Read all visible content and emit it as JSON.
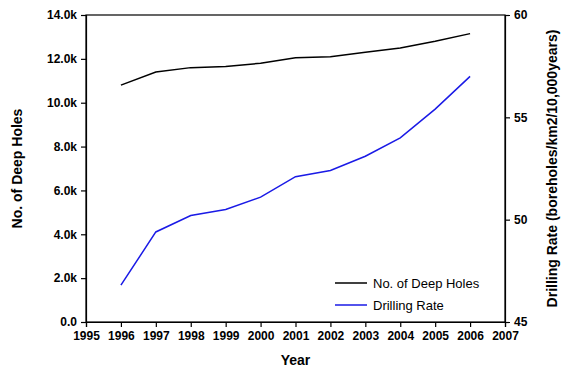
{
  "chart_data": {
    "type": "line",
    "x_label": "Year",
    "y_label": "No. of Deep Holes",
    "y2_label": "Drilling Rate (boreholes/km2/10,000years)",
    "x": [
      1996,
      1997,
      1998,
      1999,
      2000,
      2001,
      2002,
      2003,
      2004,
      2005,
      2006
    ],
    "xlim": [
      1995,
      2007
    ],
    "xticks": [
      1995,
      1996,
      1997,
      1998,
      1999,
      2000,
      2001,
      2002,
      2003,
      2004,
      2005,
      2006,
      2007
    ],
    "ylim": [
      0,
      14000
    ],
    "yticks": [
      {
        "value": 0,
        "label": "0.0"
      },
      {
        "value": 2000,
        "label": "2.0k"
      },
      {
        "value": 4000,
        "label": "4.0k"
      },
      {
        "value": 6000,
        "label": "6.0k"
      },
      {
        "value": 8000,
        "label": "8.0k"
      },
      {
        "value": 10000,
        "label": "10.0k"
      },
      {
        "value": 12000,
        "label": "12.0k"
      },
      {
        "value": 14000,
        "label": "14.0k"
      }
    ],
    "y2lim": [
      45,
      60
    ],
    "y2ticks": [
      45,
      50,
      55,
      60
    ],
    "grid": false,
    "legend": "lower right",
    "series": [
      {
        "name": "No. of Deep Holes",
        "color": "#000000",
        "values": [
          10800,
          11400,
          11600,
          11650,
          11800,
          12050,
          12100,
          12300,
          12500,
          12800,
          13150
        ]
      },
      {
        "name": "Drilling Rate",
        "color": "#1a1ae6",
        "axis": "y2",
        "values": [
          46.8,
          49.4,
          50.2,
          50.5,
          51.1,
          52.1,
          52.4,
          53.1,
          54.0,
          55.4,
          57.0
        ]
      }
    ]
  }
}
